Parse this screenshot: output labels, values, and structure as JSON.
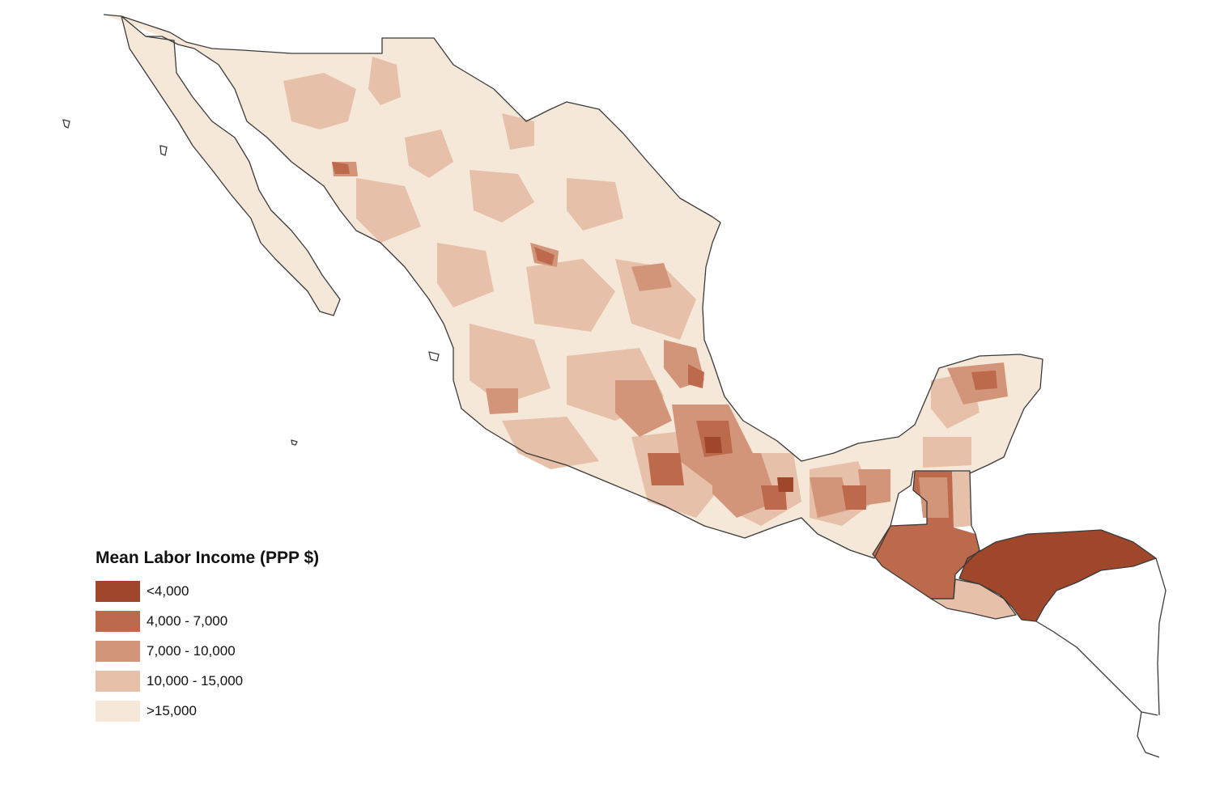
{
  "legend": {
    "title": "Mean Labor Income (PPP $)",
    "items": [
      {
        "label": "<4,000",
        "color": "#a0472b"
      },
      {
        "label": "4,000 - 7,000",
        "color": "#bd6a4c"
      },
      {
        "label": "7,000 - 10,000",
        "color": "#d3957a"
      },
      {
        "label": "10,000 - 15,000",
        "color": "#e6c0a8"
      },
      {
        "label": ">15,000",
        "color": "#f6e8d8"
      }
    ]
  },
  "map": {
    "type": "choropleth",
    "variable": "Mean Labor Income (PPP $)",
    "regions": [
      {
        "name": "Mexico",
        "dominant_class": ">15,000"
      },
      {
        "name": "Guatemala",
        "dominant_class": "4,000 - 7,000"
      },
      {
        "name": "Belize",
        "dominant_class": "10,000 - 15,000"
      },
      {
        "name": "El Salvador",
        "dominant_class": "10,000 - 15,000"
      },
      {
        "name": "Honduras",
        "dominant_class": "<4,000"
      },
      {
        "name": "Nicaragua",
        "dominant_class": "no data"
      }
    ]
  }
}
